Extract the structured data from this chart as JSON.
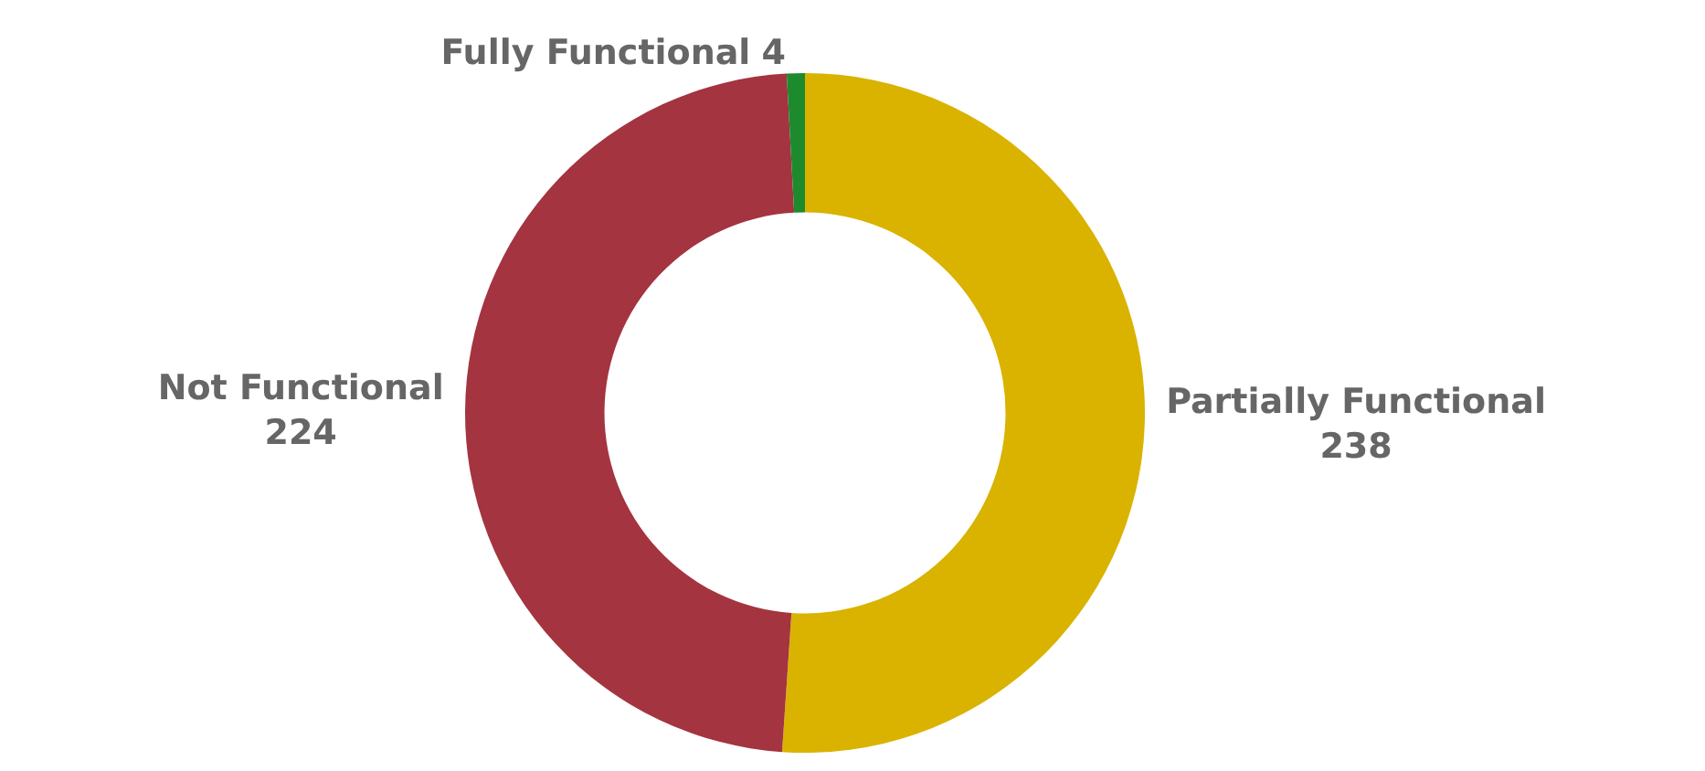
{
  "chart_data": {
    "type": "donut",
    "categories": [
      "Partially Functional",
      "Not Functional",
      "Fully Functional"
    ],
    "values": [
      238,
      224,
      4
    ],
    "colors": [
      "#d9b300",
      "#a4343f",
      "#1e8a2e"
    ],
    "data_labels": true,
    "legend": false
  }
}
